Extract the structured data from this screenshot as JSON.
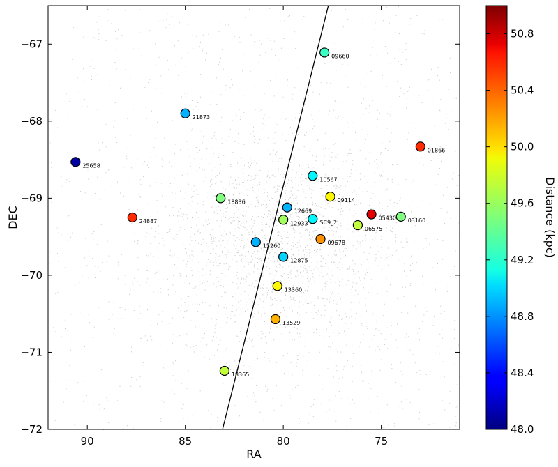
{
  "chart_data": {
    "type": "scatter",
    "title": "",
    "xlabel": "RA",
    "ylabel": "DEC",
    "xlim": [
      92,
      71
    ],
    "ylim": [
      -72,
      -66.5
    ],
    "x_inverted": true,
    "xticks": [
      90,
      85,
      80,
      75
    ],
    "xtick_labels": [
      "90",
      "85",
      "80",
      "75"
    ],
    "yticks": [
      -67,
      -68,
      -69,
      -70,
      -71,
      -72
    ],
    "ytick_labels": [
      "−67",
      "−68",
      "−69",
      "−70",
      "−71",
      "−72"
    ],
    "grid": false,
    "background": "dense field of small grey points (stellar density), thickest near RA 80, DEC −69.5",
    "line": {
      "type": "straight line",
      "points": [
        [
          83.1,
          -72.0
        ],
        [
          77.7,
          -66.5
        ]
      ],
      "color": "#000000"
    },
    "colorbar": {
      "label": "Distance (kpc)",
      "colormap": "jet",
      "vmin": 48.0,
      "vmax": 51.0,
      "ticks": [
        48.0,
        48.4,
        48.8,
        49.2,
        49.6,
        50.0,
        50.4,
        50.8
      ],
      "tick_labels": [
        "48.0",
        "48.4",
        "48.8",
        "49.2",
        "49.6",
        "50.0",
        "50.4",
        "50.8"
      ]
    },
    "points": [
      {
        "label": "09660",
        "ra": 77.9,
        "dec": -67.11,
        "distance": 49.3
      },
      {
        "label": "21873",
        "ra": 85.0,
        "dec": -67.9,
        "distance": 48.9
      },
      {
        "label": "01866",
        "ra": 73.0,
        "dec": -68.33,
        "distance": 50.5
      },
      {
        "label": "25658",
        "ra": 90.6,
        "dec": -68.53,
        "distance": 48.1
      },
      {
        "label": "10567",
        "ra": 78.5,
        "dec": -68.71,
        "distance": 49.1
      },
      {
        "label": "18836",
        "ra": 83.2,
        "dec": -69.0,
        "distance": 49.5
      },
      {
        "label": "09114",
        "ra": 77.6,
        "dec": -68.98,
        "distance": 49.9
      },
      {
        "label": "12669",
        "ra": 79.8,
        "dec": -69.12,
        "distance": 48.9
      },
      {
        "label": "24887",
        "ra": 87.7,
        "dec": -69.25,
        "distance": 50.5
      },
      {
        "label": "05430",
        "ra": 75.5,
        "dec": -69.21,
        "distance": 50.7
      },
      {
        "label": "03160",
        "ra": 74.0,
        "dec": -69.24,
        "distance": 49.5
      },
      {
        "label": "SC9_2",
        "ra": 78.5,
        "dec": -69.27,
        "distance": 49.1
      },
      {
        "label": "12933",
        "ra": 80.0,
        "dec": -69.28,
        "distance": 49.6
      },
      {
        "label": "06575",
        "ra": 76.2,
        "dec": -69.35,
        "distance": 49.7
      },
      {
        "label": "09678",
        "ra": 78.1,
        "dec": -69.53,
        "distance": 50.2
      },
      {
        "label": "15260",
        "ra": 81.4,
        "dec": -69.57,
        "distance": 48.9
      },
      {
        "label": "12875",
        "ra": 80.0,
        "dec": -69.76,
        "distance": 49.0
      },
      {
        "label": "13360",
        "ra": 80.3,
        "dec": -70.14,
        "distance": 49.9
      },
      {
        "label": "13529",
        "ra": 80.4,
        "dec": -70.57,
        "distance": 50.1
      },
      {
        "label": "18365",
        "ra": 83.0,
        "dec": -71.24,
        "distance": 49.7
      }
    ]
  }
}
